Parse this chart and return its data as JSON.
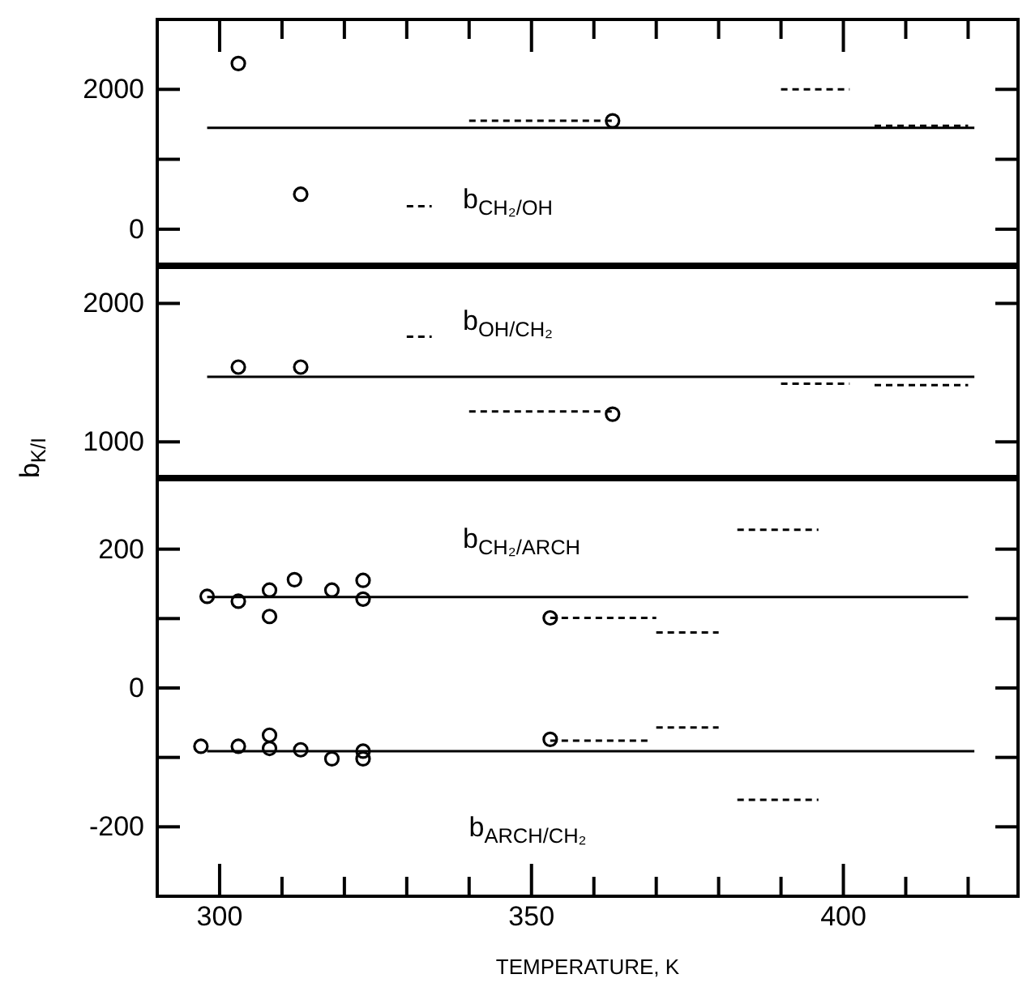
{
  "chart_data": [
    {
      "type": "scatter",
      "xlim": [
        290,
        428
      ],
      "ylim": [
        -500,
        3000
      ],
      "tick_labels": "y",
      "grid": false,
      "xticks": [
        {
          "value": 300,
          "label": null
        },
        {
          "value": 310,
          "label": null
        },
        {
          "value": 320,
          "label": null
        },
        {
          "value": 330,
          "label": null
        },
        {
          "value": 340,
          "label": null
        },
        {
          "value": 350,
          "label": null
        },
        {
          "value": 360,
          "label": null
        },
        {
          "value": 370,
          "label": null
        },
        {
          "value": 380,
          "label": null
        },
        {
          "value": 390,
          "label": null
        },
        {
          "value": 400,
          "label": null
        },
        {
          "value": 410,
          "label": null
        },
        {
          "value": 420,
          "label": null
        }
      ],
      "yticks": [
        0,
        {
          "value": 1000,
          "label": null
        },
        2000
      ],
      "annotations": [
        "b$_{CH₂/OH}$"
      ],
      "series": [
        {
          "type": "scatter",
          "marker": "circle",
          "color": "#000000",
          "x": [
            303,
            313,
            363
          ],
          "values": [
            2370,
            500,
            1550
          ]
        },
        {
          "type": "line",
          "marker": "none",
          "line_style": "solid",
          "color": "#000000",
          "x": [
            298,
            421
          ],
          "values": [
            1450,
            1450
          ]
        },
        {
          "type": "line",
          "marker": "none",
          "line_style": "dashed",
          "color": "#000000",
          "x": [
            340,
            363
          ],
          "values": [
            1550,
            1550
          ]
        },
        {
          "type": "line",
          "marker": "none",
          "line_style": "dashed",
          "color": "#000000",
          "x": [
            390,
            401
          ],
          "values": [
            2000,
            2000
          ]
        },
        {
          "type": "line",
          "marker": "none",
          "line_style": "dashed",
          "color": "#000000",
          "x": [
            405,
            420
          ],
          "values": [
            1480,
            1480
          ]
        },
        {
          "type": "line",
          "marker": "none",
          "line_style": "dashed",
          "color": "#000000",
          "x": [
            330,
            334
          ],
          "values": [
            330,
            330
          ]
        }
      ]
    },
    {
      "type": "scatter",
      "xlim": [
        290,
        428
      ],
      "ylim": [
        750,
        2260
      ],
      "tick_labels": "y",
      "grid": false,
      "ylabel": "b$_{K/I}$",
      "yticks": [
        1000,
        2000
      ],
      "annotations": [
        "b$_{OH/CH₂}$"
      ],
      "series": [
        {
          "type": "scatter",
          "marker": "circle",
          "color": "#000000",
          "x": [
            303,
            313,
            363
          ],
          "values": [
            1540,
            1540,
            1200
          ]
        },
        {
          "type": "line",
          "marker": "none",
          "line_style": "solid",
          "color": "#000000",
          "x": [
            298,
            421
          ],
          "values": [
            1470,
            1470
          ]
        },
        {
          "type": "line",
          "marker": "none",
          "line_style": "dashed",
          "color": "#000000",
          "x": [
            340,
            363
          ],
          "values": [
            1220,
            1220
          ]
        },
        {
          "type": "line",
          "marker": "none",
          "line_style": "dashed",
          "color": "#000000",
          "x": [
            390,
            401
          ],
          "values": [
            1420,
            1420
          ]
        },
        {
          "type": "line",
          "marker": "none",
          "line_style": "dashed",
          "color": "#000000",
          "x": [
            405,
            420
          ],
          "values": [
            1410,
            1410
          ]
        },
        {
          "type": "line",
          "marker": "none",
          "line_style": "dashed",
          "color": "#000000",
          "x": [
            330,
            334
          ],
          "values": [
            1760,
            1760
          ]
        }
      ]
    },
    {
      "type": "scatter",
      "xlim": [
        290,
        428
      ],
      "ylim": [
        -300,
        300
      ],
      "grid": false,
      "xlabel": "TEMPERATURE, K",
      "xticks": [
        300,
        {
          "value": 310,
          "label": null
        },
        {
          "value": 320,
          "label": null
        },
        {
          "value": 330,
          "label": null
        },
        {
          "value": 340,
          "label": null
        },
        350,
        {
          "value": 360,
          "label": null
        },
        {
          "value": 370,
          "label": null
        },
        {
          "value": 380,
          "label": null
        },
        {
          "value": 390,
          "label": null
        },
        400,
        {
          "value": 410,
          "label": null
        },
        {
          "value": 420,
          "label": null
        }
      ],
      "yticks": [
        -200,
        {
          "value": -100,
          "label": null
        },
        0,
        {
          "value": 100,
          "label": null
        },
        200
      ],
      "annotations": [
        "b$_{CH₂/ARCH}$",
        "b$_{ARCH/CH₂}$"
      ],
      "series": [
        {
          "type": "scatter",
          "marker": "circle",
          "color": "#000000",
          "x": [
            298,
            303,
            308,
            308,
            312,
            318,
            323,
            323,
            353
          ],
          "values": [
            132,
            125,
            141,
            103,
            156,
            141,
            155,
            128,
            101
          ]
        },
        {
          "type": "line",
          "marker": "none",
          "line_style": "solid",
          "color": "#000000",
          "x": [
            298,
            420
          ],
          "values": [
            131,
            131
          ]
        },
        {
          "type": "line",
          "marker": "none",
          "line_style": "dashed",
          "color": "#000000",
          "x": [
            353,
            370
          ],
          "values": [
            101,
            101
          ]
        },
        {
          "type": "line",
          "marker": "none",
          "line_style": "dashed",
          "color": "#000000",
          "x": [
            370,
            380
          ],
          "values": [
            80,
            80
          ]
        },
        {
          "type": "line",
          "marker": "none",
          "line_style": "dashed",
          "color": "#000000",
          "x": [
            383,
            396
          ],
          "values": [
            228,
            228
          ]
        },
        {
          "type": "scatter",
          "marker": "circle",
          "color": "#000000",
          "x": [
            297,
            303,
            308,
            308,
            313,
            318,
            323,
            323,
            353
          ],
          "values": [
            -84,
            -84,
            -68,
            -87,
            -89,
            -102,
            -91,
            -102,
            -74
          ]
        },
        {
          "type": "line",
          "marker": "none",
          "line_style": "solid",
          "color": "#000000",
          "x": [
            298,
            421
          ],
          "values": [
            -91,
            -91
          ]
        },
        {
          "type": "line",
          "marker": "none",
          "line_style": "dashed",
          "color": "#000000",
          "x": [
            353,
            369
          ],
          "values": [
            -76,
            -76
          ]
        },
        {
          "type": "line",
          "marker": "none",
          "line_style": "dashed",
          "color": "#000000",
          "x": [
            370,
            380
          ],
          "values": [
            -57,
            -57
          ]
        },
        {
          "type": "line",
          "marker": "none",
          "line_style": "dashed",
          "color": "#000000",
          "x": [
            383,
            396
          ],
          "values": [
            -161,
            -161
          ]
        }
      ]
    }
  ]
}
